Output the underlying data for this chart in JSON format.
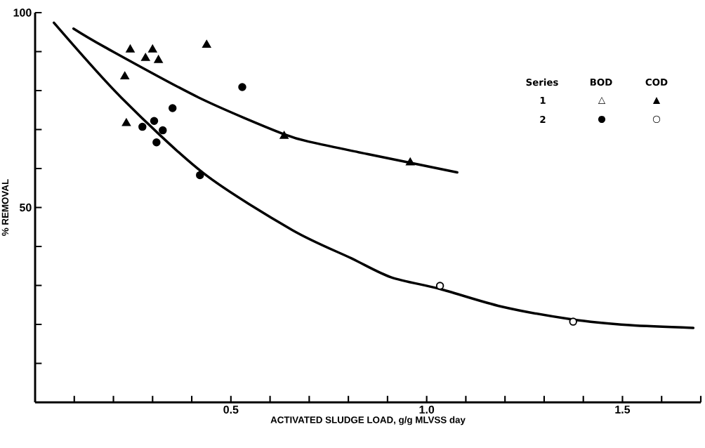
{
  "chart_data": {
    "type": "scatter",
    "xlabel": "ACTIVATED SLUDGE LOAD, g/g MLVSS day",
    "ylabel": "% REMOVAL",
    "xlim": [
      0,
      1.7
    ],
    "ylim": [
      0,
      100
    ],
    "xticks": [
      {
        "value": 0.1,
        "label": null
      },
      {
        "value": 0.2,
        "label": null
      },
      {
        "value": 0.3,
        "label": null
      },
      {
        "value": 0.4,
        "label": null
      },
      0.5,
      {
        "value": 0.6,
        "label": null
      },
      {
        "value": 0.7,
        "label": null
      },
      {
        "value": 0.8,
        "label": null
      },
      {
        "value": 0.9,
        "label": null
      },
      {
        "value": 1.0,
        "label": "1.0"
      },
      {
        "value": 1.1,
        "label": null
      },
      {
        "value": 1.2,
        "label": null
      },
      {
        "value": 1.3,
        "label": null
      },
      {
        "value": 1.4,
        "label": null
      },
      1.5,
      {
        "value": 1.6,
        "label": null
      },
      {
        "value": 1.7,
        "label": null
      }
    ],
    "yticks": [
      {
        "value": 10,
        "label": null
      },
      {
        "value": 20,
        "label": null
      },
      {
        "value": 30,
        "label": null
      },
      {
        "value": 40,
        "label": null
      },
      50,
      {
        "value": 60,
        "label": null
      },
      {
        "value": 70,
        "label": null
      },
      {
        "value": 80,
        "label": null
      },
      {
        "value": 90,
        "label": null
      },
      100
    ],
    "series": [
      {
        "marker": "triangle",
        "color": "#000000",
        "x": [
          0.243,
          0.3,
          0.282,
          0.315,
          0.229,
          0.233,
          0.438,
          0.636,
          0.958
        ],
        "values": [
          90.5,
          90.5,
          88.3,
          87.8,
          83.6,
          71.6,
          91.7,
          68.3,
          61.5
        ]
      },
      {
        "marker": "circle",
        "color": "#000000",
        "x": [
          0.529,
          0.351,
          0.304,
          0.274,
          0.326,
          0.31,
          0.421
        ],
        "values": [
          80.9,
          75.5,
          72.2,
          70.7,
          69.8,
          66.7,
          58.3
        ]
      },
      {
        "marker": "circle",
        "color": "#ffffff",
        "x": [
          1.034,
          1.374
        ],
        "values": [
          29.9,
          20.7
        ]
      },
      {
        "type": "line",
        "marker": "none",
        "color": "#000000",
        "x": [
          0.098,
          0.179,
          0.418,
          0.633,
          0.717,
          0.85,
          1.078
        ],
        "values": [
          95.9,
          91.1,
          78.2,
          68.9,
          66.5,
          63.7,
          59.0
        ]
      },
      {
        "type": "line",
        "marker": "none",
        "color": "#000000",
        "x": [
          0.048,
          0.22,
          0.43,
          0.657,
          0.807,
          0.909,
          1.034,
          1.19,
          1.37,
          1.519,
          1.681
        ],
        "values": [
          97.4,
          78.2,
          58.8,
          44.2,
          37.0,
          32.1,
          29.1,
          24.6,
          21.3,
          19.8,
          19.1
        ]
      }
    ],
    "annotations": [
      "Series",
      "BOD",
      "COD",
      "1",
      "△",
      "▲",
      "2",
      "●",
      "○"
    ],
    "grid": false
  }
}
